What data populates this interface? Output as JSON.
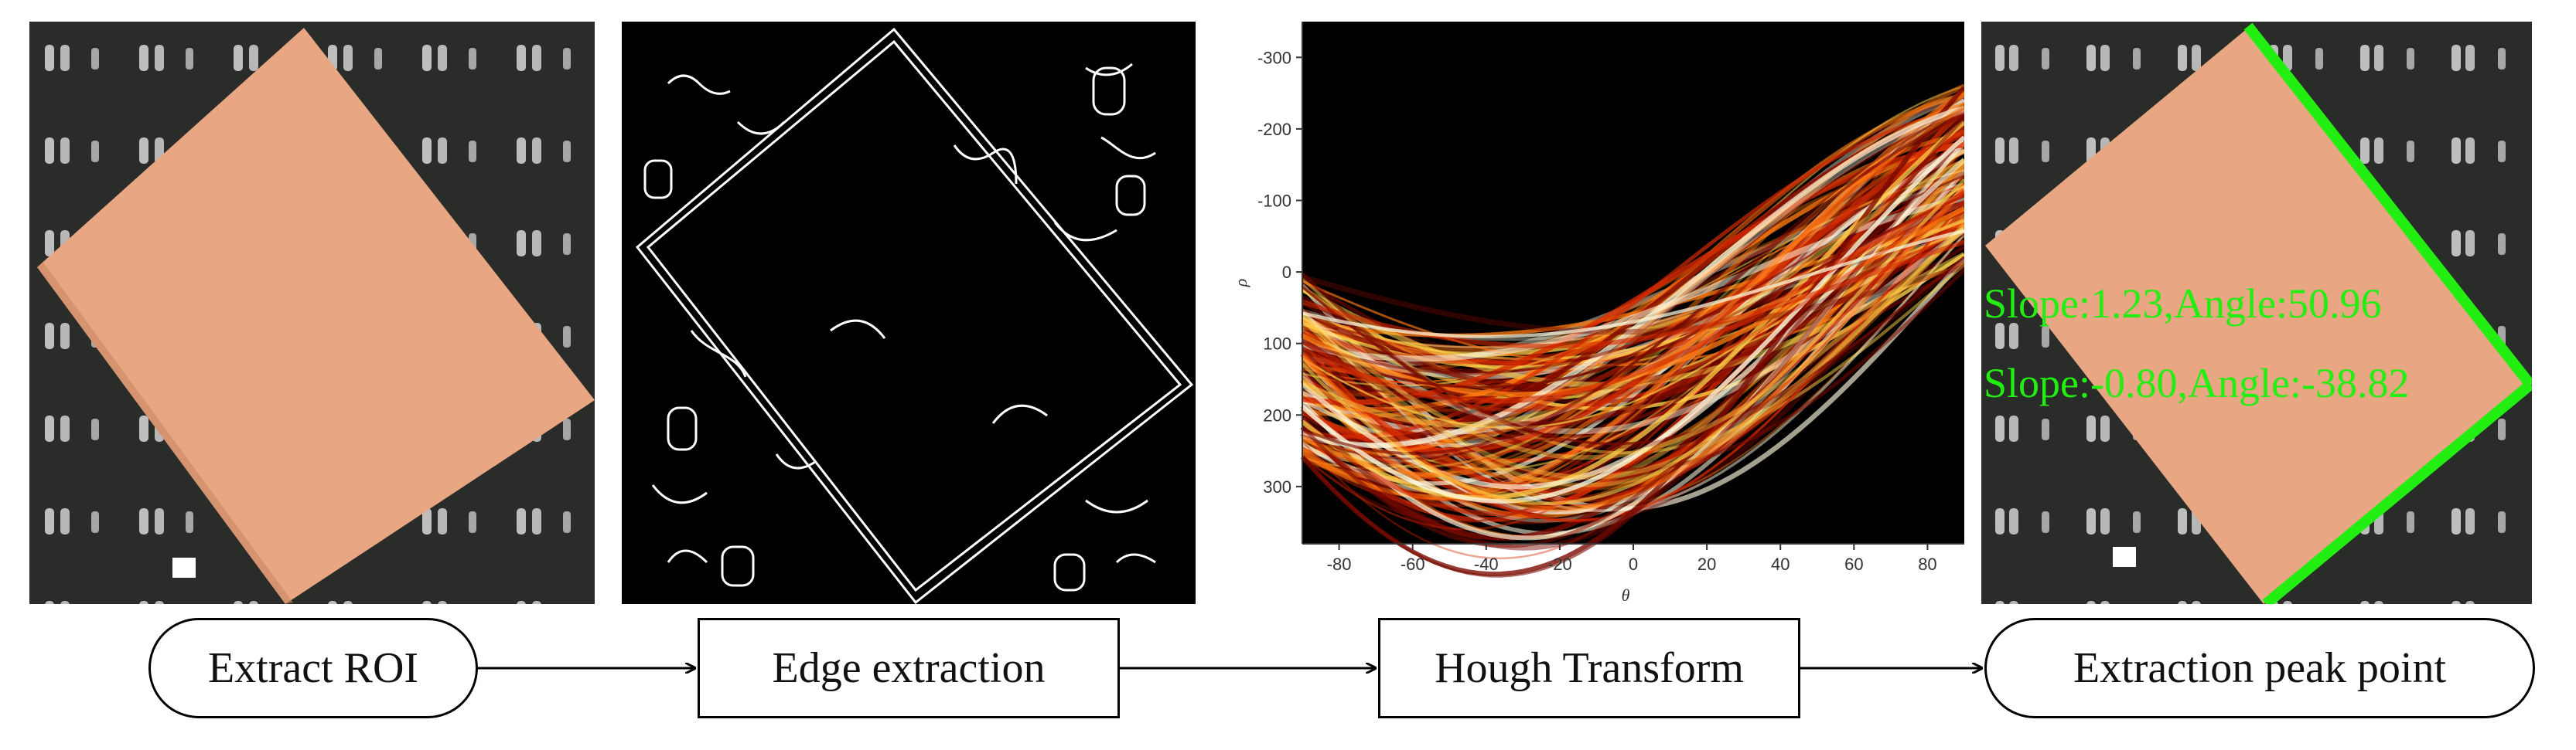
{
  "steps": [
    {
      "label": "Extract ROI"
    },
    {
      "label": "Edge extraction"
    },
    {
      "label": "Hough Transform"
    },
    {
      "label": "Extraction peak point"
    }
  ],
  "hough_plot": {
    "xlabel": "θ",
    "ylabel": "ρ",
    "x_ticks": [
      "-80",
      "-60",
      "-40",
      "-20",
      "0",
      "20",
      "40",
      "60",
      "80"
    ],
    "y_ticks": [
      "-300",
      "-200",
      "-100",
      "0",
      "100",
      "200",
      "300"
    ],
    "colormap": [
      "#000000",
      "#7a0a00",
      "#d42800",
      "#ff7a10",
      "#ffd24a",
      "#fffbe0"
    ]
  },
  "result": {
    "line1": "Slope:1.23,Angle:50.96",
    "line2": "Slope:-0.80,Angle:-38.82",
    "line_color": "#22ee11"
  },
  "colors": {
    "board": "#2a2c2a",
    "sheet": "#e8a682",
    "edge": "#ffffff"
  }
}
